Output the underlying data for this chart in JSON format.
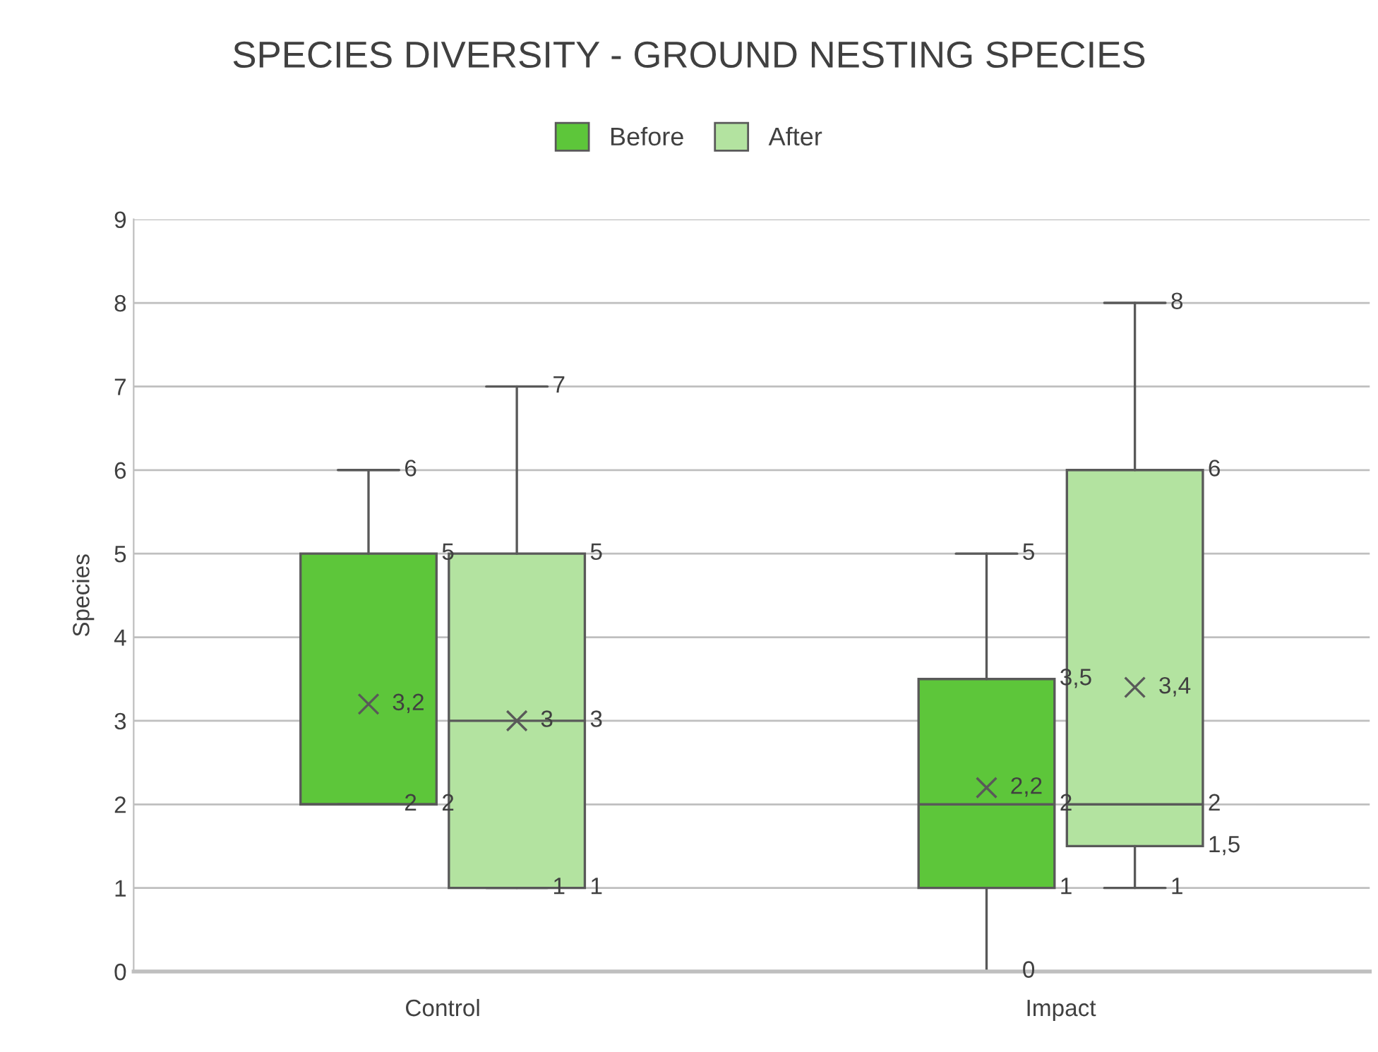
{
  "chart_data": {
    "type": "box",
    "title": "SPECIES DIVERSITY - GROUND NESTING SPECIES",
    "ylabel": "Species",
    "categories": [
      "Control",
      "Impact"
    ],
    "series": [
      {
        "name": "Before",
        "color": "#5dc63a",
        "boxes": [
          {
            "low": 2,
            "q1": 2,
            "median": 2,
            "q3": 5,
            "high": 6,
            "mean": 3.2
          },
          {
            "low": 0,
            "q1": 1,
            "median": 2,
            "q3": 3.5,
            "high": 5,
            "mean": 2.2
          }
        ],
        "value_labels": [
          [
            "2",
            "2",
            null,
            "5",
            "6",
            "3,2"
          ],
          [
            "0",
            "1",
            "2",
            "3,5",
            "5",
            "2,2"
          ]
        ]
      },
      {
        "name": "After",
        "color": "#b3e3a0",
        "boxes": [
          {
            "low": 1,
            "q1": 1,
            "median": 3,
            "q3": 5,
            "high": 7,
            "mean": 3
          },
          {
            "low": 1,
            "q1": 1.5,
            "median": 2,
            "q3": 6,
            "high": 8,
            "mean": 3.4
          }
        ],
        "value_labels": [
          [
            "1",
            "1",
            "3",
            "5",
            "7",
            "3"
          ],
          [
            "1",
            "1,5",
            "2",
            "6",
            "8",
            "3,4"
          ]
        ]
      }
    ],
    "ylim": [
      0,
      9
    ],
    "yticks": [
      0,
      1,
      2,
      3,
      4,
      5,
      6,
      7,
      8,
      9
    ],
    "grid": "y",
    "legend": "top",
    "marker": "cross"
  }
}
